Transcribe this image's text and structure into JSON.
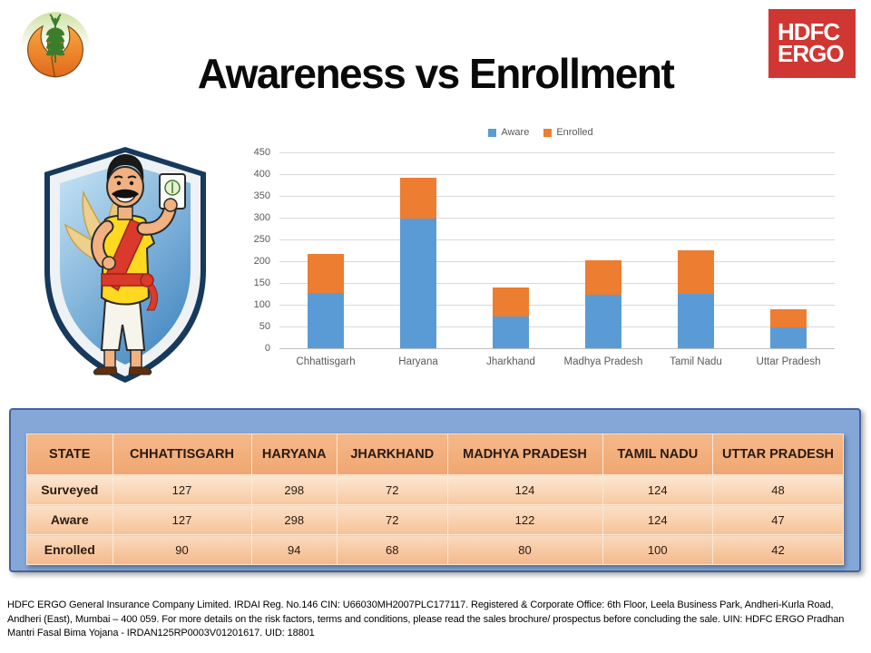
{
  "slide": {
    "title": "Awareness vs Enrollment"
  },
  "logos": {
    "pmfby_alt": "crop-insurance-wheat-hands-logo",
    "hdfc": {
      "line1": "HDFC",
      "line2": "ERGO",
      "brand_color": "#D03732"
    }
  },
  "chart_data": {
    "type": "bar",
    "stacked": true,
    "title": "",
    "xlabel": "",
    "ylabel": "",
    "categories": [
      "Chhattisgarh",
      "Haryana",
      "Jharkhand",
      "Madhya Pradesh",
      "Tamil Nadu",
      "Uttar Pradesh"
    ],
    "series": [
      {
        "name": "Aware",
        "color": "#5B9BD5",
        "values": [
          127,
          298,
          72,
          122,
          124,
          47
        ]
      },
      {
        "name": "Enrolled",
        "color": "#ED7D31",
        "values": [
          90,
          94,
          68,
          80,
          100,
          42
        ]
      }
    ],
    "ylim": [
      0,
      450
    ],
    "ytick_step": 50,
    "grid": true,
    "legend_position": "top"
  },
  "table": {
    "header": [
      "STATE",
      "CHHATTISGARH",
      "HARYANA",
      "JHARKHAND",
      "MADHYA PRADESH",
      "TAMIL NADU",
      "UTTAR PRADESH"
    ],
    "rows": [
      {
        "label": "Surveyed",
        "values": [
          127,
          298,
          72,
          124,
          124,
          48
        ]
      },
      {
        "label": "Aware",
        "values": [
          127,
          298,
          72,
          122,
          124,
          47
        ]
      },
      {
        "label": "Enrolled",
        "values": [
          90,
          94,
          68,
          80,
          100,
          42
        ]
      }
    ]
  },
  "footer": {
    "text": "HDFC ERGO General Insurance Company Limited. IRDAI Reg. No.146 CIN: U66030MH2007PLC177117. Registered & Corporate Office: 6th Floor, Leela Business Park, Andheri-Kurla Road, Andheri (East), Mumbai – 400 059. For more details on the risk factors, terms and conditions, please read the sales brochure/ prospectus before concluding the sale. UIN: HDFC ERGO Pradhan Mantri Fasal Bima Yojana - IRDAN125RP0003V01201617. UID: 18801"
  }
}
